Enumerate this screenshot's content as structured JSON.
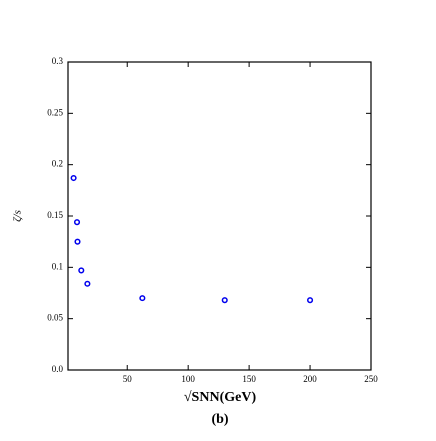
{
  "chart_data": {
    "type": "scatter",
    "caption": "(b)",
    "x_label": "√SNN(GeV)",
    "y_label": "ζ/s",
    "series": [
      {
        "color": "#0000ee",
        "x": [
          6,
          8.8,
          9.2,
          12.3,
          17.3,
          62.4,
          130,
          200
        ],
        "values": [
          0.187,
          0.144,
          0.125,
          0.097,
          0.084,
          0.07,
          0.068,
          0.068
        ]
      }
    ],
    "xlim": [
      1.4,
      250
    ],
    "ylim": [
      0,
      0.3
    ],
    "xticks": [
      50,
      100,
      150,
      200,
      250
    ],
    "yticks": [
      {
        "value": 0,
        "label": "0.0"
      },
      0.05,
      0.1,
      0.15,
      0.2,
      0.25,
      0.3
    ]
  }
}
